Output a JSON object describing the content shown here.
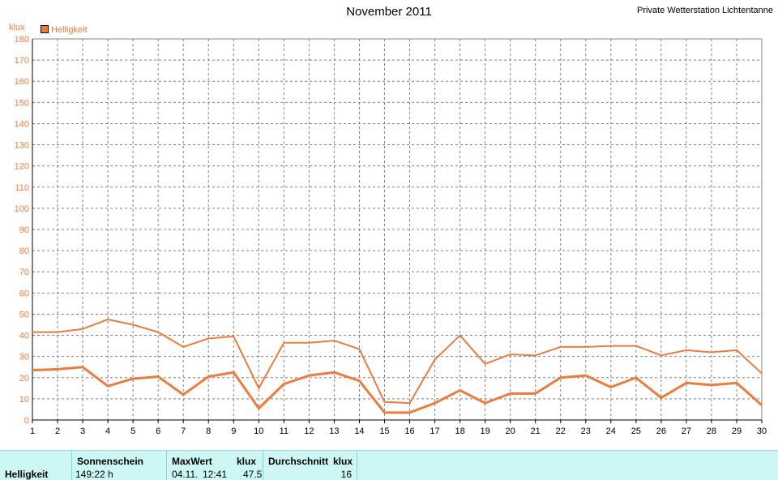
{
  "title": "November 2011",
  "station": "Private Wetterstation Lichtentanne",
  "unit": "klux",
  "legend_label": "Helligkeit",
  "colors": {
    "series": "#e87d3e",
    "grid": "#808080",
    "summary_bg": "#cdf7f5"
  },
  "chart_data": {
    "type": "line",
    "title": "November 2011",
    "ylabel": "klux",
    "xlabel": "",
    "x": [
      1,
      2,
      3,
      4,
      5,
      6,
      7,
      8,
      9,
      10,
      11,
      12,
      13,
      14,
      15,
      16,
      17,
      18,
      19,
      20,
      21,
      22,
      23,
      24,
      25,
      26,
      27,
      28,
      29,
      30
    ],
    "ylim": [
      0,
      180
    ],
    "yticks": [
      0,
      10,
      20,
      30,
      40,
      50,
      60,
      70,
      80,
      90,
      100,
      110,
      120,
      130,
      140,
      150,
      160,
      170,
      180
    ],
    "grid": true,
    "legend": "top-left",
    "series": [
      {
        "name": "Helligkeit",
        "role": "max",
        "values": [
          41.5,
          41.5,
          43,
          47.5,
          45,
          41.5,
          34.5,
          38.5,
          39.5,
          15,
          36.5,
          36.5,
          37.5,
          33.5,
          8.5,
          8,
          28.5,
          40,
          26.5,
          31,
          30.5,
          34.5,
          34.5,
          35,
          35,
          30.5,
          33,
          32,
          33,
          22
        ]
      },
      {
        "name": "Helligkeit",
        "role": "average",
        "values": [
          23.5,
          24,
          25,
          16,
          19.5,
          20.5,
          12,
          20.5,
          22.5,
          5.5,
          17,
          21,
          22.5,
          18.5,
          3.5,
          3.5,
          8,
          14,
          8,
          12.5,
          12.5,
          20,
          21,
          15.5,
          20,
          10.5,
          17.5,
          16.5,
          17.5,
          7
        ]
      }
    ]
  },
  "summary": {
    "row_label": "Helligkeit",
    "sun_header": "Sonnenschein",
    "sun_value": "149:22 h",
    "max_header": "MaxWert",
    "max_unit": "klux",
    "max_date": "04.11.",
    "max_time": "12:41",
    "max_value": "47.5",
    "avg_header": "Durchschnitt",
    "avg_unit": "klux",
    "avg_value": "16"
  }
}
